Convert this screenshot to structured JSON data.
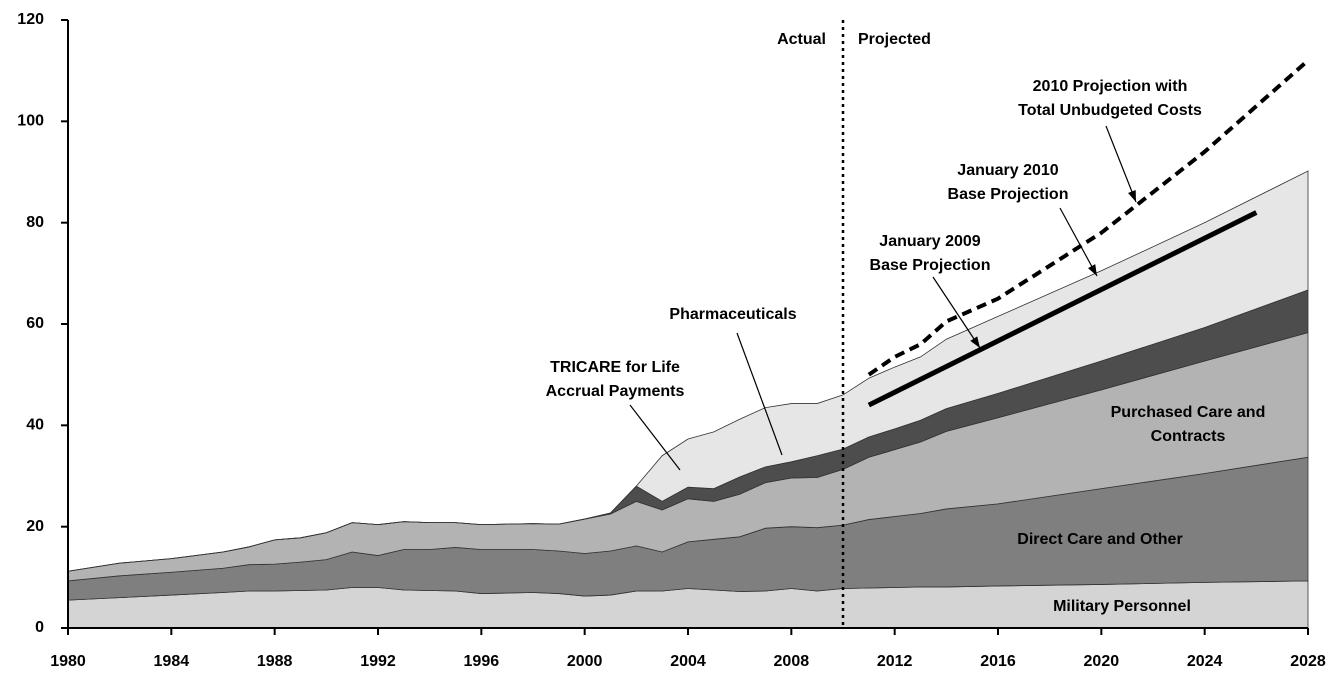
{
  "chart_data": {
    "type": "stacked_area",
    "x": [
      1980,
      1982,
      1984,
      1986,
      1987,
      1988,
      1989,
      1990,
      1991,
      1992,
      1993,
      1994,
      1995,
      1996,
      1997,
      1998,
      1999,
      2000,
      2001,
      2002,
      2003,
      2004,
      2005,
      2006,
      2007,
      2008,
      2009,
      2010,
      2011,
      2012,
      2013,
      2014,
      2016,
      2020,
      2024,
      2028
    ],
    "series": [
      {
        "name": [
          "Military Personnel"
        ],
        "color": "#d4d4d4",
        "values": [
          5.5,
          6,
          6.5,
          7,
          7.3,
          7.3,
          7.4,
          7.5,
          8,
          8,
          7.5,
          7.4,
          7.3,
          6.8,
          6.9,
          7,
          6.8,
          6.3,
          6.5,
          7.3,
          7.3,
          7.8,
          7.5,
          7.2,
          7.3,
          7.8,
          7.3,
          7.8,
          7.9,
          8,
          8.1,
          8.1,
          8.3,
          8.6,
          9,
          9.3
        ]
      },
      {
        "name": [
          "Direct Care and Other"
        ],
        "color": "#7f7f7f",
        "values": [
          3.8,
          4.3,
          4.5,
          4.8,
          5.2,
          5.3,
          5.6,
          6,
          7,
          6.3,
          8,
          8.1,
          8.6,
          8.7,
          8.6,
          8.5,
          8.4,
          8.4,
          8.7,
          8.9,
          7.7,
          9.2,
          10,
          10.8,
          12.4,
          12.2,
          12.5,
          12.5,
          13.5,
          14,
          14.5,
          15.4,
          16.2,
          18.9,
          21.5,
          24.4
        ]
      },
      {
        "name": [
          "Purchased Care and",
          "Contracts"
        ],
        "color": "#b3b3b3",
        "values": [
          1.9,
          2.5,
          2.7,
          3.2,
          3.5,
          4.8,
          4.8,
          5.3,
          5.8,
          6.1,
          5.5,
          5.3,
          4.9,
          4.9,
          5,
          5.1,
          5.3,
          6.8,
          7.3,
          8.8,
          8.3,
          8.5,
          7.5,
          8.4,
          9,
          9.6,
          9.9,
          11,
          12.3,
          13.2,
          14.1,
          15.3,
          17,
          19.5,
          22.2,
          24.6
        ]
      },
      {
        "name": [
          "Pharmaceuticals"
        ],
        "color": "#4d4d4d",
        "values": [
          0,
          0,
          0,
          0,
          0,
          0,
          0,
          0,
          0,
          0,
          0,
          0,
          0,
          0,
          0,
          0,
          0,
          0,
          0.2,
          3,
          1.7,
          2.3,
          2.5,
          3.4,
          3.1,
          3.2,
          4.3,
          4,
          4,
          4.1,
          4.3,
          4.5,
          4.8,
          5.7,
          6.6,
          8.4
        ]
      },
      {
        "name": [
          "TRICARE for Life",
          "Accrual Payments"
        ],
        "color": "#e6e6e6",
        "values": [
          0,
          0,
          0,
          0,
          0,
          0,
          0,
          0,
          0,
          0,
          0,
          0,
          0,
          0,
          0,
          0,
          0,
          0,
          0,
          0,
          9,
          9.5,
          11.2,
          11.4,
          11.7,
          11.5,
          10.3,
          10.7,
          11.6,
          12.2,
          12.5,
          13.7,
          15.2,
          17.8,
          20.7,
          23.5
        ]
      }
    ],
    "lines": [
      {
        "name": [
          "January 2009",
          "Base Projection"
        ],
        "style": "solid",
        "color": "#000000",
        "x": [
          2011,
          2026
        ],
        "values": [
          44,
          82
        ]
      },
      {
        "name": [
          "January 2010",
          "Base Projection"
        ],
        "style": "none",
        "color": "#000000",
        "x": [],
        "values": []
      },
      {
        "name": [
          "2010 Projection with",
          "Total Unbudgeted Costs"
        ],
        "style": "dashed",
        "color": "#000000",
        "x": [
          2011,
          2012,
          2013,
          2014,
          2016,
          2020,
          2024,
          2028
        ],
        "values": [
          50,
          53.5,
          56,
          60.5,
          65,
          78,
          94,
          112
        ]
      }
    ],
    "divider": {
      "x": 2010,
      "left": "Actual",
      "right": "Projected"
    },
    "xlim": [
      1980,
      2028
    ],
    "xticks": [
      1980,
      1984,
      1988,
      1992,
      1996,
      2000,
      2004,
      2008,
      2012,
      2016,
      2020,
      2024,
      2028
    ],
    "ylim": [
      0,
      120
    ],
    "yticks": [
      0,
      20,
      40,
      60,
      80,
      100,
      120
    ]
  }
}
